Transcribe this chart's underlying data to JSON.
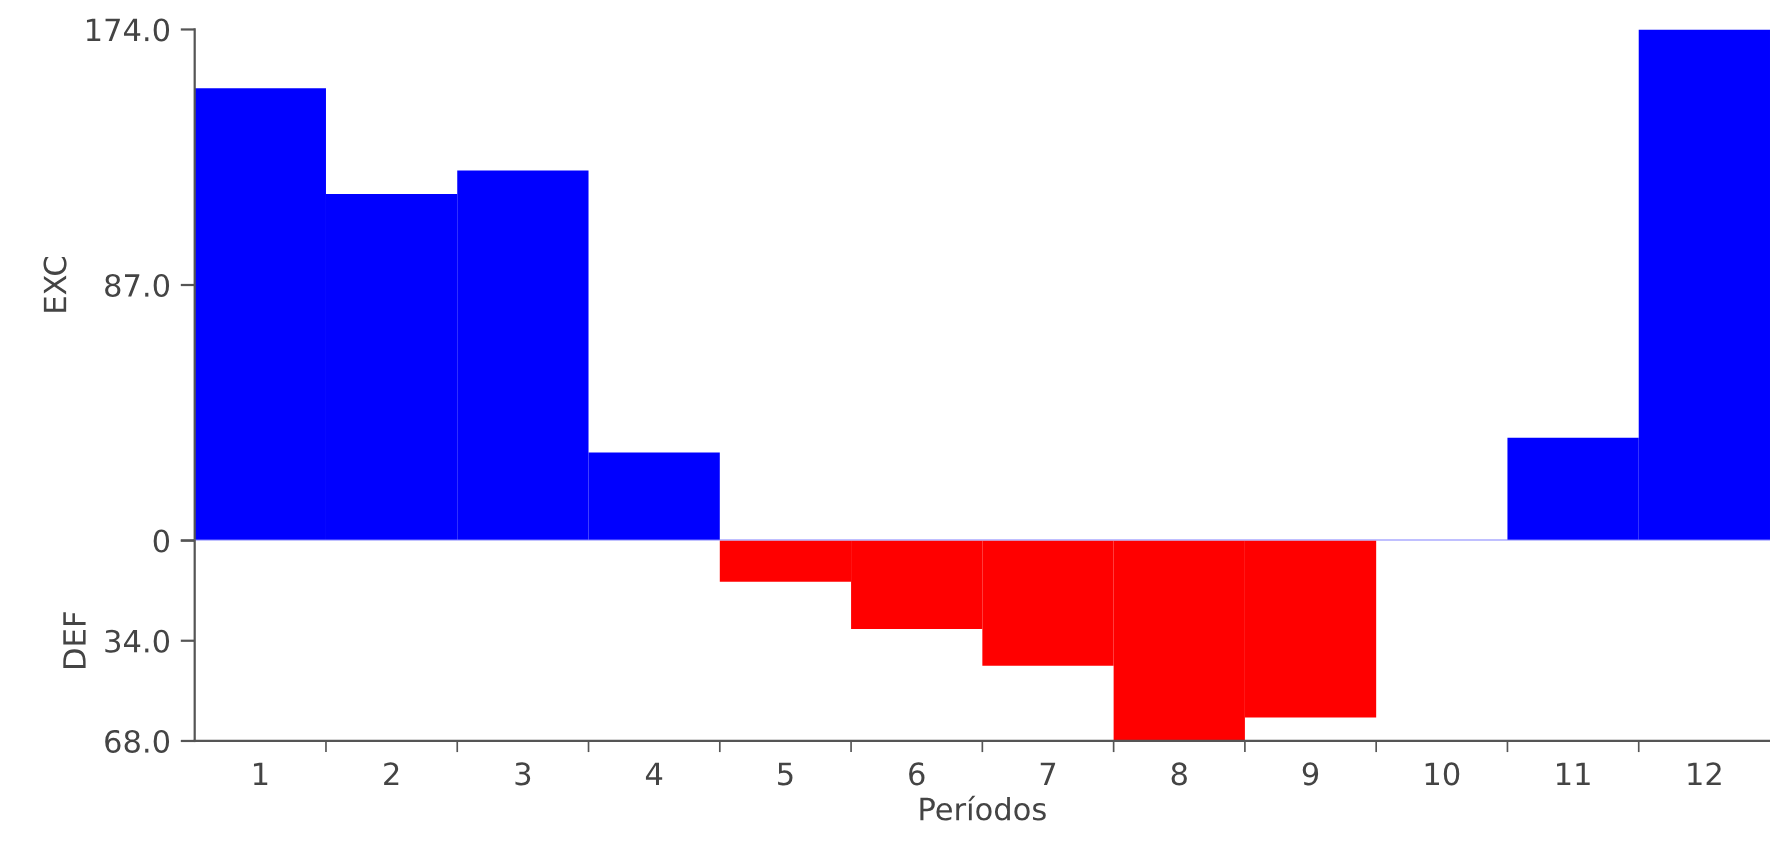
{
  "chart_data": [
    {
      "type": "bar",
      "ylabel": "EXC",
      "categories": [
        "1",
        "2",
        "3",
        "4",
        "5",
        "6",
        "7",
        "8",
        "9",
        "10",
        "11",
        "12"
      ],
      "series": [
        {
          "color": "#0000ff",
          "values": [
            154,
            118,
            126,
            30,
            null,
            null,
            null,
            null,
            null,
            null,
            35,
            174
          ]
        }
      ],
      "ylim": [
        0,
        174
      ],
      "yticks": [
        {
          "value": 0,
          "label": "0"
        },
        {
          "value": 87,
          "label": "87.0"
        },
        {
          "value": 174,
          "label": "174.0"
        }
      ],
      "tick_labels": "y",
      "grid": false,
      "legend": false
    },
    {
      "type": "bar",
      "ylabel": "DEF",
      "xlabel": "Períodos",
      "categories": [
        "1",
        "2",
        "3",
        "4",
        "5",
        "6",
        "7",
        "8",
        "9",
        "10",
        "11",
        "12"
      ],
      "series": [
        {
          "color": "#ff0000",
          "values": [
            null,
            null,
            null,
            null,
            14,
            30,
            42.5,
            68,
            60,
            null,
            null,
            null
          ]
        }
      ],
      "ylim": [
        68,
        0
      ],
      "yticks": [
        {
          "value": 0,
          "label": null
        },
        {
          "value": 34,
          "label": "34.0"
        },
        {
          "value": 68,
          "label": "68.0"
        }
      ],
      "grid": false,
      "legend": false
    }
  ]
}
